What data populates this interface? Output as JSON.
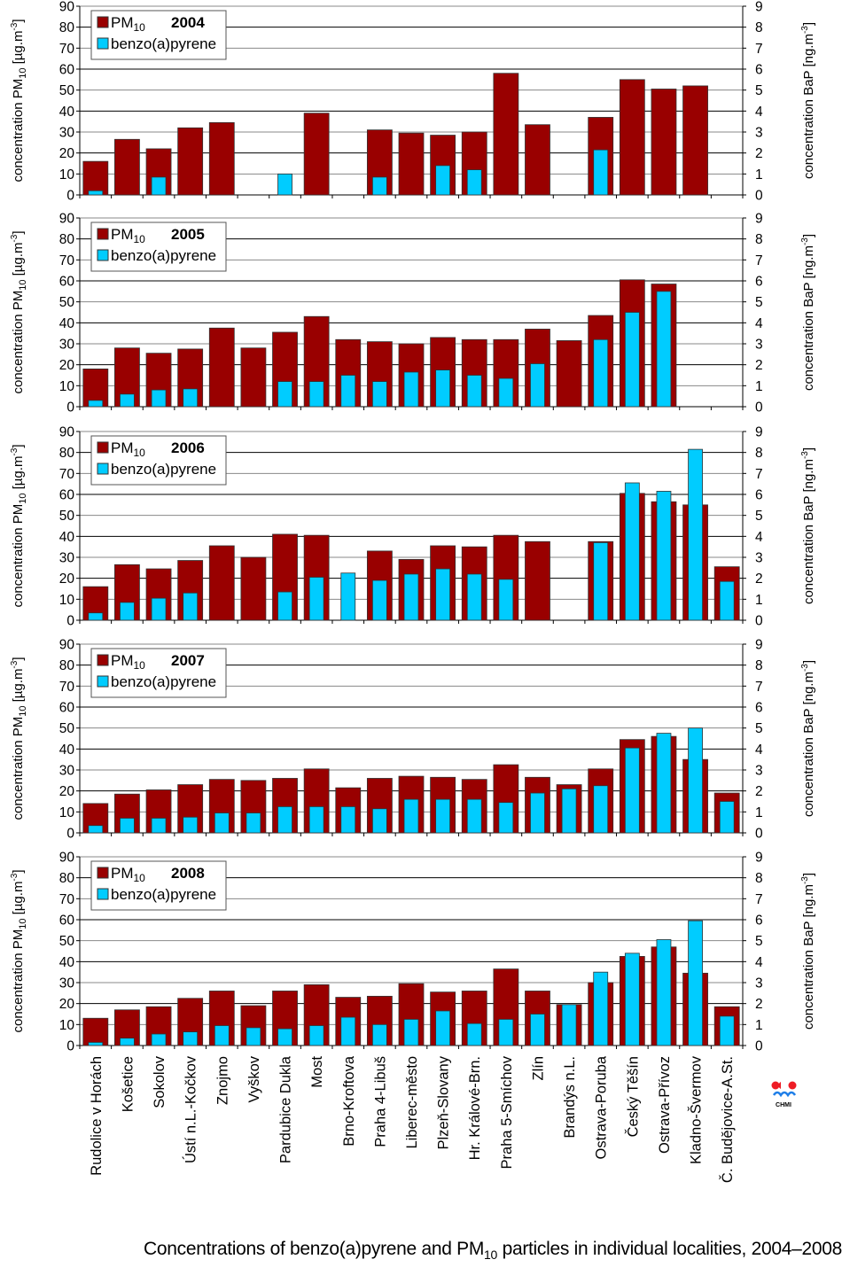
{
  "caption": {
    "prefix": "Concentrations of benzo(a)pyrene and PM",
    "sub": "10",
    "suffix": " particles in individual localities, 2004–2008"
  },
  "logo": {
    "text": "CHMI"
  },
  "colors": {
    "pm10": "#990000",
    "bap": "#00CCFF",
    "grid": "#999999"
  },
  "chart_data": {
    "type": "bar",
    "title": "Concentrations of benzo(a)pyrene and PM10 particles in individual localities, 2004–2008",
    "categories": [
      "Rudolice v Horách",
      "Košetice",
      "Sokolov",
      "Ústí n.L.-Kočkov",
      "Znojmo",
      "Vyškov",
      "Pardubice Dukla",
      "Most",
      "Brno-Kroftova",
      "Praha 4-Libuš",
      "Liberec-město",
      "Plzeň-Slovany",
      "Hr. Králové-Brn.",
      "Praha 5-Smíchov",
      "Zlín",
      "Brandýs n.L.",
      "Ostrava-Poruba",
      "Český Těšín",
      "Ostrava-Přívoz",
      "Kladno-Švermov",
      "Č. Budějovice-A.St."
    ],
    "left_axis": {
      "label": "concentration PM",
      "label_sub": "10",
      "label_unit": " [µg.m",
      "label_sup": "-3",
      "label_end": "]",
      "ylim": [
        0,
        90
      ],
      "ticks": [
        0,
        10,
        20,
        30,
        40,
        50,
        60,
        70,
        80,
        90
      ]
    },
    "right_axis": {
      "label": "concentration BaP [ng.m",
      "label_sup": "-3",
      "label_end": "]",
      "ylim": [
        0,
        9
      ],
      "ticks": [
        0,
        1,
        2,
        3,
        4,
        5,
        6,
        7,
        8,
        9
      ]
    },
    "legend": {
      "position": "top-left",
      "pm_label": "PM",
      "pm_sub": "10",
      "bap_label": "benzo(a)pyrene"
    },
    "grid": true,
    "panels": [
      {
        "year": "2004",
        "series": [
          {
            "name": "PM10",
            "axis": "left",
            "values": [
              16,
              26.5,
              22,
              32,
              34.5,
              null,
              null,
              39,
              null,
              31,
              29.5,
              28.5,
              30,
              58,
              33.5,
              null,
              37,
              55,
              50.5,
              52,
              null
            ]
          },
          {
            "name": "benzo(a)pyrene",
            "axis": "right",
            "values": [
              0.2,
              null,
              0.85,
              null,
              null,
              null,
              1.0,
              null,
              null,
              0.85,
              null,
              1.4,
              1.2,
              null,
              null,
              null,
              2.15,
              null,
              null,
              null,
              null
            ]
          }
        ]
      },
      {
        "year": "2005",
        "series": [
          {
            "name": "PM10",
            "axis": "left",
            "values": [
              18,
              28,
              25.5,
              27.5,
              37.5,
              28,
              35.5,
              43,
              32,
              31,
              30,
              33,
              32,
              32,
              37,
              31.5,
              43.5,
              60.5,
              58.5,
              null,
              null
            ]
          },
          {
            "name": "benzo(a)pyrene",
            "axis": "right",
            "values": [
              0.3,
              0.6,
              0.8,
              0.85,
              null,
              null,
              1.2,
              1.2,
              1.5,
              1.2,
              1.65,
              1.75,
              1.5,
              1.35,
              2.05,
              null,
              3.2,
              4.5,
              5.5,
              null,
              null
            ]
          }
        ]
      },
      {
        "year": "2006",
        "series": [
          {
            "name": "PM10",
            "axis": "left",
            "values": [
              16,
              26.5,
              24.5,
              28.5,
              35.5,
              30,
              41,
              40.5,
              null,
              33,
              29,
              35.5,
              35,
              40.5,
              37.5,
              null,
              37.5,
              60.5,
              56.5,
              55,
              25.5
            ]
          },
          {
            "name": "benzo(a)pyrene",
            "axis": "right",
            "values": [
              0.35,
              0.85,
              1.05,
              1.3,
              null,
              null,
              1.35,
              2.05,
              2.25,
              1.9,
              2.2,
              2.45,
              2.2,
              1.95,
              null,
              null,
              3.7,
              6.55,
              6.15,
              8.15,
              1.85
            ]
          }
        ]
      },
      {
        "year": "2007",
        "series": [
          {
            "name": "PM10",
            "axis": "left",
            "values": [
              14,
              18.5,
              20.5,
              23,
              25.5,
              25,
              26,
              30.5,
              21.5,
              26,
              27,
              26.5,
              25.5,
              32.5,
              26.5,
              23,
              30.5,
              44.5,
              46,
              35,
              19
            ]
          },
          {
            "name": "benzo(a)pyrene",
            "axis": "right",
            "values": [
              0.35,
              0.7,
              0.7,
              0.75,
              0.95,
              0.95,
              1.25,
              1.25,
              1.25,
              1.15,
              1.6,
              1.6,
              1.6,
              1.45,
              1.9,
              2.1,
              2.25,
              4.05,
              4.75,
              5.0,
              1.5
            ]
          }
        ]
      },
      {
        "year": "2008",
        "series": [
          {
            "name": "PM10",
            "axis": "left",
            "values": [
              13,
              17,
              18.5,
              22.5,
              26,
              19,
              26,
              29,
              23,
              23.5,
              29.5,
              25.5,
              26,
              36.5,
              26,
              19.5,
              30,
              42.5,
              47,
              34.5,
              18.5
            ]
          },
          {
            "name": "benzo(a)pyrene",
            "axis": "right",
            "values": [
              0.15,
              0.35,
              0.55,
              0.65,
              0.95,
              0.85,
              0.8,
              0.95,
              1.35,
              1.0,
              1.25,
              1.65,
              1.05,
              1.25,
              1.5,
              1.95,
              3.5,
              4.4,
              5.05,
              5.95,
              1.4
            ]
          }
        ]
      }
    ]
  }
}
